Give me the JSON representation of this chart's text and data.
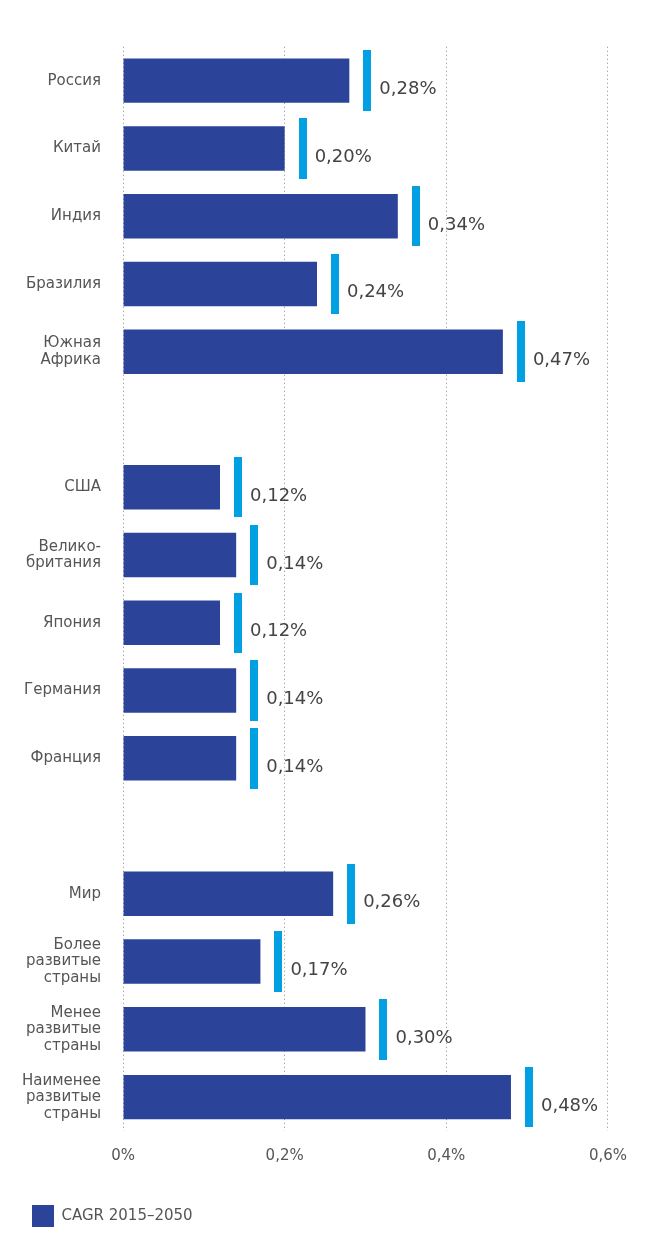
{
  "chart_data": {
    "type": "bar",
    "orientation": "horizontal",
    "categories": [
      "Россия",
      "Китай",
      "Индия",
      "Бразилия",
      "Южная Африка",
      null,
      "США",
      "Велико-британия",
      "Япония",
      "Германия",
      "Франция",
      null,
      "Мир",
      "Более развитые страны",
      "Менее развитые страны",
      "Наименее развитые страны"
    ],
    "series": [
      {
        "name": "CAGR 2015–2050",
        "color": "#2b4499",
        "values": [
          0.28,
          0.2,
          0.34,
          0.24,
          0.47,
          null,
          0.12,
          0.14,
          0.12,
          0.14,
          0.14,
          null,
          0.26,
          0.17,
          0.3,
          0.48
        ],
        "value_labels": [
          "0,28%",
          "0,20%",
          "0,34%",
          "0,24%",
          "0,47%",
          null,
          "0,12%",
          "0,14%",
          "0,12%",
          "0,14%",
          "0,14%",
          null,
          "0,26%",
          "0,17%",
          "0,30%",
          "0,48%"
        ]
      }
    ],
    "xlim": [
      0,
      0.6
    ],
    "xticks": [
      {
        "value": 0,
        "label": "0%"
      },
      {
        "value": 0.2,
        "label": "0,2%"
      },
      {
        "value": 0.4,
        "label": "0,4%"
      },
      {
        "value": 0.6,
        "label": "0,6%"
      }
    ],
    "grid": "x",
    "legend": "bottom left"
  }
}
